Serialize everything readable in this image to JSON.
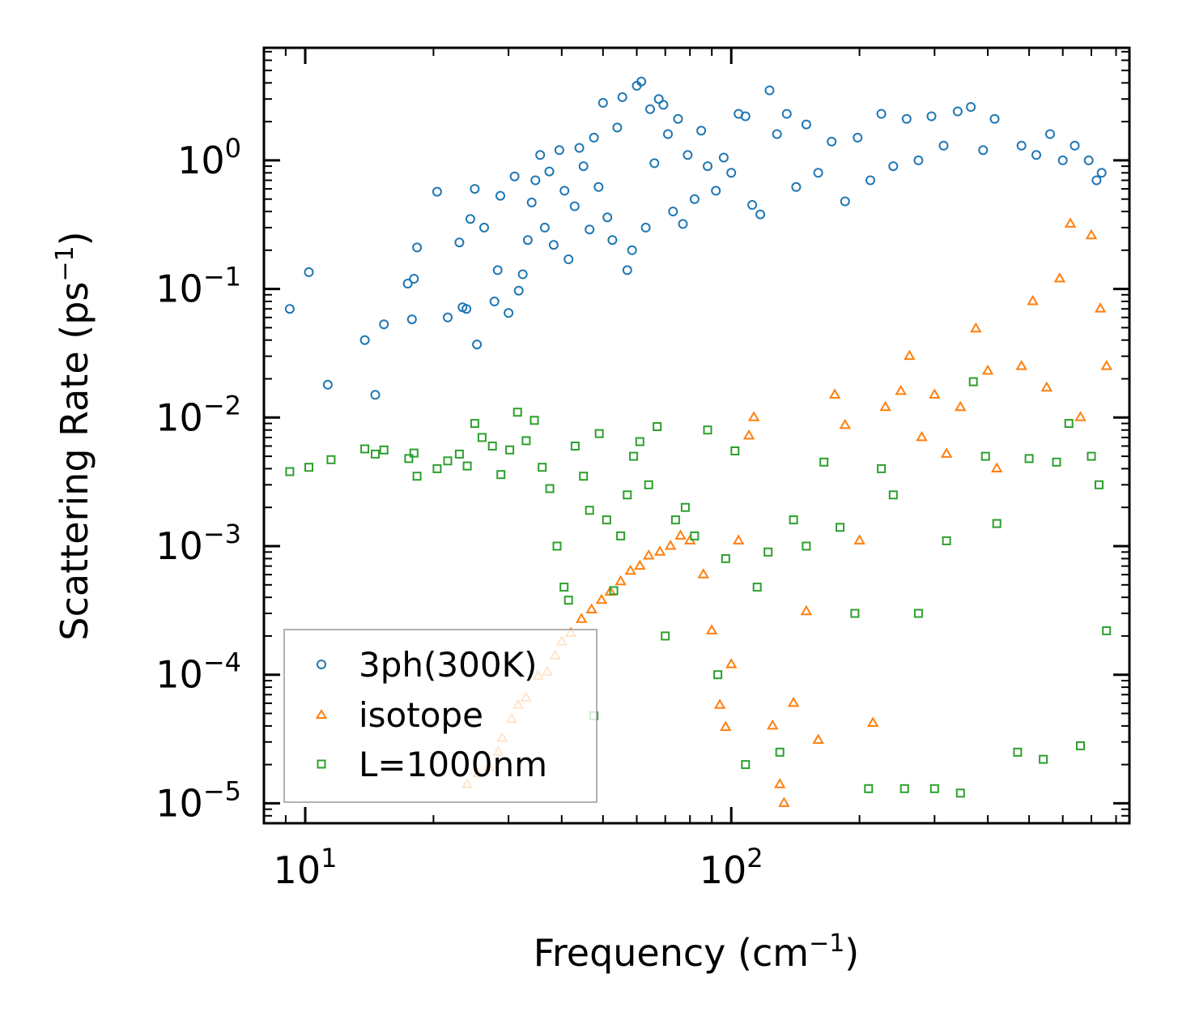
{
  "chart_data": {
    "type": "scatter",
    "xlabel": "Frequency (cm",
    "xlabel_sup": "−1",
    "xlabel_close": ")",
    "ylabel": "Scattering Rate (ps",
    "ylabel_sup": "−1",
    "ylabel_close": ")",
    "xscale": "log",
    "yscale": "log",
    "xlim": [
      8.0,
      860.0
    ],
    "ylim": [
      7e-06,
      7.5
    ],
    "x_ticks": [
      {
        "value": 10,
        "base": "10",
        "exp": "1"
      },
      {
        "value": 100,
        "base": "10",
        "exp": "2"
      }
    ],
    "y_ticks": [
      {
        "value": 1,
        "base": "10",
        "exp": "0"
      },
      {
        "value": 0.1,
        "base": "10",
        "exp": "−1"
      },
      {
        "value": 0.01,
        "base": "10",
        "exp": "−2"
      },
      {
        "value": 0.001,
        "base": "10",
        "exp": "−3"
      },
      {
        "value": 0.0001,
        "base": "10",
        "exp": "−4"
      },
      {
        "value": 1e-05,
        "base": "10",
        "exp": "−5"
      }
    ],
    "legend": {
      "placement": "lower-left",
      "entries": [
        {
          "label": "3ph(300K)",
          "marker": "circle",
          "color": "#1f77b4"
        },
        {
          "label": "isotope",
          "marker": "triangle",
          "color": "#ff7f0e"
        },
        {
          "label": "L=1000nm",
          "marker": "square",
          "color": "#2ca02c"
        }
      ]
    },
    "series": [
      {
        "name": "3ph(300K)",
        "marker": "circle",
        "color": "#1f77b4",
        "points": [
          [
            9.2,
            0.07
          ],
          [
            10.2,
            0.135
          ],
          [
            11.3,
            0.018
          ],
          [
            13.8,
            0.04
          ],
          [
            14.6,
            0.015
          ],
          [
            15.3,
            0.053
          ],
          [
            17.4,
            0.11
          ],
          [
            17.8,
            0.058
          ],
          [
            18.3,
            0.21
          ],
          [
            18.0,
            0.12
          ],
          [
            20.4,
            0.57
          ],
          [
            21.6,
            0.06
          ],
          [
            23.0,
            0.23
          ],
          [
            23.4,
            0.072
          ],
          [
            23.9,
            0.07
          ],
          [
            24.4,
            0.35
          ],
          [
            25.0,
            0.6
          ],
          [
            25.3,
            0.037
          ],
          [
            26.3,
            0.3
          ],
          [
            27.8,
            0.08
          ],
          [
            28.3,
            0.14
          ],
          [
            28.7,
            0.53
          ],
          [
            30.0,
            0.065
          ],
          [
            31.0,
            0.75
          ],
          [
            31.7,
            0.097
          ],
          [
            32.4,
            0.13
          ],
          [
            33.3,
            0.24
          ],
          [
            34.0,
            0.47
          ],
          [
            34.7,
            0.7
          ],
          [
            35.6,
            1.1
          ],
          [
            36.5,
            0.3
          ],
          [
            37.4,
            0.82
          ],
          [
            38.3,
            0.22
          ],
          [
            39.5,
            1.2
          ],
          [
            40.6,
            0.58
          ],
          [
            41.5,
            0.17
          ],
          [
            42.9,
            0.44
          ],
          [
            44.0,
            1.25
          ],
          [
            45.0,
            0.9
          ],
          [
            46.5,
            0.29
          ],
          [
            47.6,
            1.5
          ],
          [
            48.8,
            0.62
          ],
          [
            50.0,
            2.8
          ],
          [
            51.2,
            0.36
          ],
          [
            52.6,
            0.24
          ],
          [
            54.0,
            1.8
          ],
          [
            55.5,
            3.1
          ],
          [
            57.0,
            0.14
          ],
          [
            58.5,
            0.2
          ],
          [
            60.0,
            3.8
          ],
          [
            61.5,
            4.1
          ],
          [
            63.0,
            0.3
          ],
          [
            64.5,
            2.5
          ],
          [
            66.0,
            0.95
          ],
          [
            67.6,
            3.0
          ],
          [
            69.3,
            2.7
          ],
          [
            71.0,
            1.6
          ],
          [
            73.0,
            0.4
          ],
          [
            75.0,
            2.1
          ],
          [
            77.0,
            0.32
          ],
          [
            79.0,
            1.1
          ],
          [
            82.0,
            0.5
          ],
          [
            85.0,
            1.7
          ],
          [
            88.0,
            0.9
          ],
          [
            92.0,
            0.58
          ],
          [
            96.0,
            1.05
          ],
          [
            100,
            0.8
          ],
          [
            104,
            2.3
          ],
          [
            108,
            2.2
          ],
          [
            112,
            0.45
          ],
          [
            117,
            0.38
          ],
          [
            123,
            3.5
          ],
          [
            128,
            1.6
          ],
          [
            135,
            2.3
          ],
          [
            142,
            0.62
          ],
          [
            150,
            1.9
          ],
          [
            160,
            0.8
          ],
          [
            172,
            1.4
          ],
          [
            185,
            0.48
          ],
          [
            198,
            1.5
          ],
          [
            212,
            0.7
          ],
          [
            225,
            2.3
          ],
          [
            240,
            0.9
          ],
          [
            258,
            2.1
          ],
          [
            275,
            1.0
          ],
          [
            295,
            2.2
          ],
          [
            315,
            1.3
          ],
          [
            340,
            2.4
          ],
          [
            365,
            2.6
          ],
          [
            390,
            1.2
          ],
          [
            415,
            2.1
          ],
          [
            480,
            1.3
          ],
          [
            520,
            1.1
          ],
          [
            560,
            1.6
          ],
          [
            600,
            1.0
          ],
          [
            640,
            1.3
          ],
          [
            690,
            1.0
          ],
          [
            720,
            0.7
          ],
          [
            740,
            0.8
          ]
        ]
      },
      {
        "name": "isotope",
        "marker": "triangle",
        "color": "#ff7f0e",
        "points": [
          [
            24.0,
            1.4e-05
          ],
          [
            25.4,
            1.7e-05
          ],
          [
            27.0,
            1.9e-05
          ],
          [
            28.4,
            2.5e-05
          ],
          [
            29.0,
            3.2e-05
          ],
          [
            30.5,
            4.5e-05
          ],
          [
            31.6,
            5.8e-05
          ],
          [
            33.0,
            6.6e-05
          ],
          [
            35.2,
            9.7e-05
          ],
          [
            37.0,
            0.000105
          ],
          [
            38.6,
            0.00014
          ],
          [
            40.0,
            0.00018
          ],
          [
            42.0,
            0.00021
          ],
          [
            44.5,
            0.00027
          ],
          [
            47.0,
            0.00032
          ],
          [
            49.6,
            0.00038
          ],
          [
            52.0,
            0.00044
          ],
          [
            55.0,
            0.00053
          ],
          [
            58.0,
            0.00064
          ],
          [
            61.0,
            0.0007
          ],
          [
            64.0,
            0.00084
          ],
          [
            68.0,
            0.0009
          ],
          [
            72.0,
            0.001
          ],
          [
            76.0,
            0.0012
          ],
          [
            80.0,
            0.0011
          ],
          [
            86.0,
            0.0006
          ],
          [
            90.0,
            0.00022
          ],
          [
            94.0,
            5.8e-05
          ],
          [
            97.0,
            3.9e-05
          ],
          [
            100,
            0.00012
          ],
          [
            104,
            0.0011
          ],
          [
            110,
            0.0072
          ],
          [
            113,
            0.01
          ],
          [
            125,
            4e-05
          ],
          [
            130,
            1.4e-05
          ],
          [
            133,
            1e-05
          ],
          [
            140,
            6e-05
          ],
          [
            150,
            0.00031
          ],
          [
            160,
            3.1e-05
          ],
          [
            175,
            0.015
          ],
          [
            185,
            0.0087
          ],
          [
            200,
            0.0011
          ],
          [
            215,
            4.2e-05
          ],
          [
            230,
            0.012
          ],
          [
            250,
            0.016
          ],
          [
            262,
            0.03
          ],
          [
            280,
            0.007
          ],
          [
            300,
            0.015
          ],
          [
            320,
            0.0052
          ],
          [
            345,
            0.012
          ],
          [
            375,
            0.049
          ],
          [
            400,
            0.023
          ],
          [
            420,
            0.004
          ],
          [
            480,
            0.025
          ],
          [
            510,
            0.08
          ],
          [
            550,
            0.017
          ],
          [
            590,
            0.12
          ],
          [
            625,
            0.32
          ],
          [
            660,
            0.01
          ],
          [
            700,
            0.26
          ],
          [
            735,
            0.07
          ],
          [
            760,
            0.025
          ]
        ]
      },
      {
        "name": "L=1000nm",
        "marker": "square",
        "color": "#2ca02c",
        "points": [
          [
            9.2,
            0.0038
          ],
          [
            10.2,
            0.0041
          ],
          [
            11.5,
            0.0047
          ],
          [
            13.8,
            0.0057
          ],
          [
            14.6,
            0.0052
          ],
          [
            15.3,
            0.0056
          ],
          [
            17.5,
            0.0048
          ],
          [
            18.0,
            0.0053
          ],
          [
            18.3,
            0.0035
          ],
          [
            20.4,
            0.004
          ],
          [
            21.6,
            0.0046
          ],
          [
            23.0,
            0.0052
          ],
          [
            24.0,
            0.0042
          ],
          [
            25.0,
            0.009
          ],
          [
            26.0,
            0.007
          ],
          [
            27.5,
            0.006
          ],
          [
            28.8,
            0.0036
          ],
          [
            30.2,
            0.0056
          ],
          [
            31.5,
            0.011
          ],
          [
            33.0,
            0.0066
          ],
          [
            34.5,
            0.0095
          ],
          [
            36.0,
            0.0041
          ],
          [
            37.5,
            0.0028
          ],
          [
            39.0,
            0.001
          ],
          [
            40.5,
            0.00048
          ],
          [
            41.5,
            0.00038
          ],
          [
            43.0,
            0.006
          ],
          [
            45.0,
            0.0035
          ],
          [
            46.5,
            0.0019
          ],
          [
            47.6,
            4.8e-05
          ],
          [
            49.0,
            0.0075
          ],
          [
            51.0,
            0.0016
          ],
          [
            53.0,
            0.00045
          ],
          [
            55.0,
            0.0012
          ],
          [
            57.0,
            0.0025
          ],
          [
            59.0,
            0.005
          ],
          [
            61.0,
            0.0065
          ],
          [
            64.0,
            0.003
          ],
          [
            67.0,
            0.0085
          ],
          [
            70.0,
            0.0002
          ],
          [
            74.0,
            0.0016
          ],
          [
            78.0,
            0.002
          ],
          [
            82.0,
            0.0012
          ],
          [
            88.0,
            0.008
          ],
          [
            93.0,
            0.0001
          ],
          [
            97.0,
            0.0008
          ],
          [
            102,
            0.0055
          ],
          [
            108,
            2e-05
          ],
          [
            115,
            0.00048
          ],
          [
            122,
            0.0009
          ],
          [
            130,
            2.5e-05
          ],
          [
            140,
            0.0016
          ],
          [
            150,
            0.001
          ],
          [
            165,
            0.0045
          ],
          [
            180,
            0.0014
          ],
          [
            195,
            0.0003
          ],
          [
            210,
            1.3e-05
          ],
          [
            225,
            0.004
          ],
          [
            240,
            0.0025
          ],
          [
            255,
            1.3e-05
          ],
          [
            275,
            0.0003
          ],
          [
            300,
            1.3e-05
          ],
          [
            320,
            0.0011
          ],
          [
            345,
            1.2e-05
          ],
          [
            370,
            0.019
          ],
          [
            395,
            0.005
          ],
          [
            420,
            0.0015
          ],
          [
            470,
            2.5e-05
          ],
          [
            500,
            0.0048
          ],
          [
            540,
            2.2e-05
          ],
          [
            580,
            0.0045
          ],
          [
            620,
            0.009
          ],
          [
            660,
            2.8e-05
          ],
          [
            700,
            0.005
          ],
          [
            730,
            0.003
          ],
          [
            760,
            0.00022
          ]
        ]
      }
    ]
  }
}
